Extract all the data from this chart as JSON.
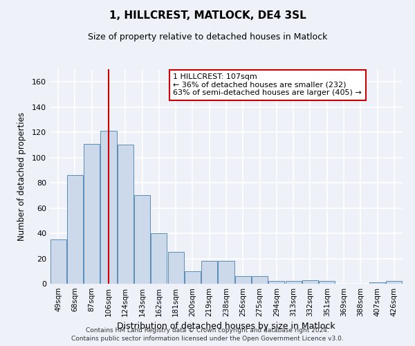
{
  "title": "1, HILLCREST, MATLOCK, DE4 3SL",
  "subtitle": "Size of property relative to detached houses in Matlock",
  "xlabel": "Distribution of detached houses by size in Matlock",
  "ylabel": "Number of detached properties",
  "bar_color": "#ccd9ea",
  "bar_edge_color": "#5b8db8",
  "categories": [
    "49sqm",
    "68sqm",
    "87sqm",
    "106sqm",
    "124sqm",
    "143sqm",
    "162sqm",
    "181sqm",
    "200sqm",
    "219sqm",
    "238sqm",
    "256sqm",
    "275sqm",
    "294sqm",
    "313sqm",
    "332sqm",
    "351sqm",
    "369sqm",
    "388sqm",
    "407sqm",
    "426sqm"
  ],
  "values": [
    35,
    86,
    111,
    121,
    110,
    70,
    40,
    25,
    10,
    18,
    18,
    6,
    6,
    2,
    2,
    3,
    2,
    0,
    0,
    1,
    2
  ],
  "ylim": [
    0,
    170
  ],
  "yticks": [
    0,
    20,
    40,
    60,
    80,
    100,
    120,
    140,
    160
  ],
  "property_line_x": 3,
  "annotation_line1": "1 HILLCREST: 107sqm",
  "annotation_line2": "← 36% of detached houses are smaller (232)",
  "annotation_line3": "63% of semi-detached houses are larger (405) →",
  "footer_line1": "Contains HM Land Registry data © Crown copyright and database right 2024.",
  "footer_line2": "Contains public sector information licensed under the Open Government Licence v3.0.",
  "background_color": "#eef2f8",
  "plot_bg_color": "#eef2f8",
  "grid_color": "#ffffff",
  "annotation_box_color": "#ffffff",
  "annotation_box_edge": "#cc0000",
  "vline_color": "#cc0000"
}
